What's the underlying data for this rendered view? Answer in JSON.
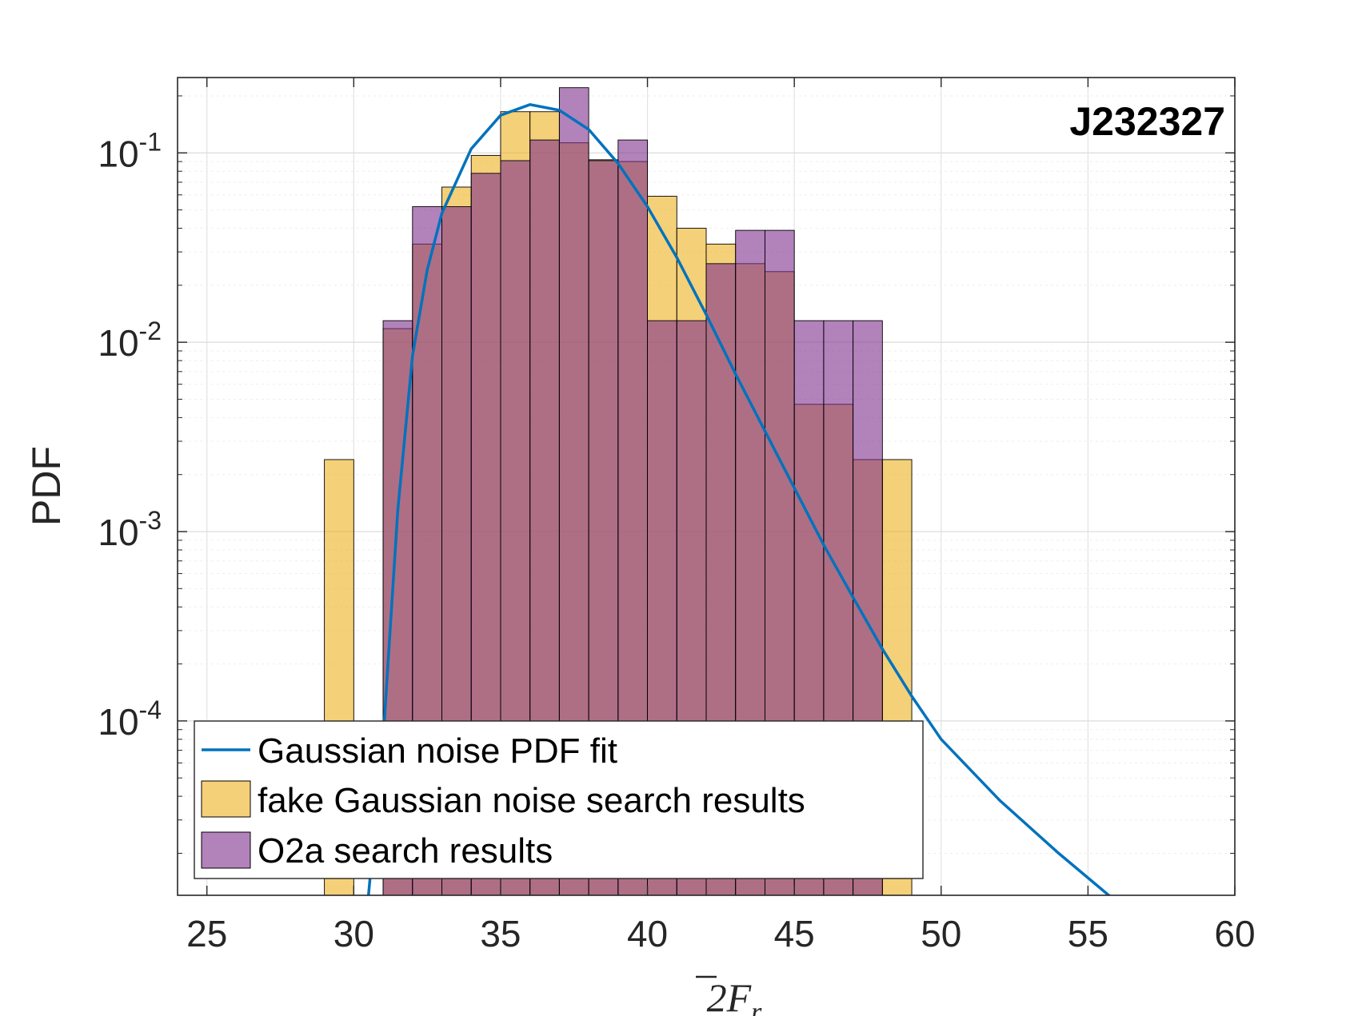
{
  "chart_data": {
    "type": "bar",
    "xlabel_main": "2",
    "xlabel_var": "F",
    "xlabel_sub": "r",
    "ylabel": "PDF",
    "annotation": "J232327",
    "xlim": [
      24,
      60
    ],
    "ylim": [
      1.2e-05,
      0.25
    ],
    "yscale": "log",
    "grid": true,
    "legend_placement": "bottom-left",
    "xticks": [
      25,
      30,
      35,
      40,
      45,
      50,
      55,
      60
    ],
    "xtick_labels": [
      "25",
      "30",
      "35",
      "40",
      "45",
      "50",
      "55",
      "60"
    ],
    "yticks": [
      {
        "value": 0.1,
        "base": "10",
        "exp": "-1"
      },
      {
        "value": 0.01,
        "base": "10",
        "exp": "-2"
      },
      {
        "value": 0.001,
        "base": "10",
        "exp": "-3"
      },
      {
        "value": 0.0001,
        "base": "10",
        "exp": "-4"
      }
    ],
    "bin_edges": [
      29,
      30,
      31,
      32,
      33,
      34,
      35,
      36,
      37,
      38,
      39,
      40,
      41,
      42,
      43,
      44,
      45,
      46,
      47,
      48,
      49
    ],
    "series": [
      {
        "name": "fake Gaussian noise search results",
        "color": "#EDB120",
        "values": [
          0.0024,
          0.0,
          0.0118,
          0.033,
          0.066,
          0.097,
          0.165,
          0.165,
          0.113,
          0.092,
          0.09,
          0.059,
          0.04,
          0.033,
          0.026,
          0.0236,
          0.0047,
          0.0047,
          0.0024,
          0.0024
        ]
      },
      {
        "name": "O2a search results",
        "color": "#7E2F8E",
        "values": [
          0.0,
          0.0,
          0.013,
          0.052,
          0.052,
          0.078,
          0.091,
          0.117,
          0.221,
          0.091,
          0.117,
          0.013,
          0.013,
          0.026,
          0.039,
          0.039,
          0.013,
          0.013,
          0.013,
          0.0
        ]
      }
    ],
    "fit_curve": {
      "name": "Gaussian noise PDF fit",
      "color": "#0072BD",
      "points": [
        [
          30.5,
          1.2e-05
        ],
        [
          31.0,
          8e-05
        ],
        [
          31.5,
          0.0013
        ],
        [
          32.0,
          0.0085
        ],
        [
          32.5,
          0.024
        ],
        [
          33.0,
          0.048
        ],
        [
          34.0,
          0.105
        ],
        [
          35.0,
          0.158
        ],
        [
          36.0,
          0.18
        ],
        [
          37.0,
          0.168
        ],
        [
          38.0,
          0.133
        ],
        [
          39.0,
          0.088
        ],
        [
          40.0,
          0.052
        ],
        [
          41.0,
          0.028
        ],
        [
          42.0,
          0.014
        ],
        [
          43.0,
          0.0068
        ],
        [
          44.0,
          0.0034
        ],
        [
          45.0,
          0.0017
        ],
        [
          46.0,
          0.00085
        ],
        [
          47.0,
          0.00045
        ],
        [
          48.0,
          0.00024
        ],
        [
          49.0,
          0.000135
        ],
        [
          50.0,
          8e-05
        ],
        [
          52.0,
          3.8e-05
        ],
        [
          54.0,
          2e-05
        ],
        [
          56.0,
          1.1e-05
        ],
        [
          58.4,
          5.8e-06
        ]
      ]
    }
  }
}
